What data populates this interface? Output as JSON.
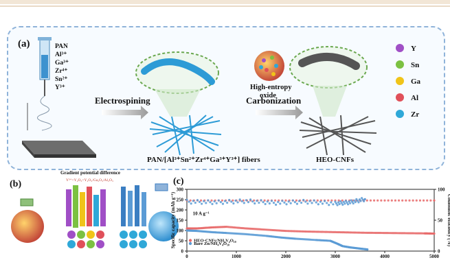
{
  "colors": {
    "frame": "#8fb3d9",
    "fiber_blue": "#2d9bd6",
    "fiber_gray": "#555555",
    "bar_top": "#f2e6d6",
    "red": "#e86a6a",
    "blue": "#5b9bd5"
  },
  "panel_a": {
    "label": "(a)",
    "reagents": [
      "PAN",
      "Al³⁺",
      "Ga³⁺",
      "Zr⁴⁺",
      "Sn²⁺",
      "Y³⁺"
    ],
    "step1": "Electrospining",
    "step2": "Carbonization",
    "fiber_caption": "PAN/[Al³⁺Sn²⁺Zr⁴⁺Ga³⁺Y³⁺] fibers",
    "oxide_label_1": "High-entropy",
    "oxide_label_2": "oxide",
    "product": "HEO-CNFs",
    "legend": [
      {
        "name": "Y",
        "color": "#a04fc6"
      },
      {
        "name": "Sn",
        "color": "#7cc142"
      },
      {
        "name": "Ga",
        "color": "#f0c419"
      },
      {
        "name": "Al",
        "color": "#e0505a"
      },
      {
        "name": "Zr",
        "color": "#2fa8d8"
      }
    ]
  },
  "panel_b": {
    "label": "(b)",
    "title": "Gradient potential difference",
    "subtitle": "Y³⁺<Y₂O₃<Y₂O₃/Ga₂O₃/Al₂O₃"
  },
  "panel_c": {
    "label": "(c)"
  },
  "chart_data": {
    "type": "scatter",
    "xlabel": "",
    "ylabel": "Specific capacity (mAh g⁻¹)",
    "y2label": "Coulombic efficiency (%)",
    "xlim": [
      0,
      5000
    ],
    "ylim": [
      0,
      300
    ],
    "y2lim": [
      0,
      100
    ],
    "xticks": [
      0,
      1000,
      2000,
      3000,
      4000,
      5000
    ],
    "yticks": [
      0,
      50,
      100,
      150,
      200,
      250,
      300
    ],
    "y2ticks": [
      0,
      50,
      100
    ],
    "annotation": "10 A g⁻¹",
    "series": [
      {
        "name": "HEO-CNFs/NH₄V₄O₁₀",
        "kind": "capacity",
        "color": "#e86a6a",
        "x": [
          0,
          200,
          500,
          800,
          1200,
          1600,
          2000,
          2400,
          2800,
          3200,
          3600,
          4000,
          4400,
          4800,
          5000
        ],
        "y": [
          110,
          110,
          115,
          118,
          110,
          104,
          98,
          95,
          93,
          91,
          89,
          88,
          87,
          86,
          85
        ]
      },
      {
        "name": "Bare Zn/NH₄V₄O₁₀",
        "kind": "capacity",
        "color": "#5b9bd5",
        "x": [
          0,
          200,
          500,
          800,
          1200,
          1600,
          1900,
          2200,
          2600,
          2900,
          3050,
          3150,
          3300,
          3500,
          3650
        ],
        "y": [
          100,
          98,
          92,
          88,
          82,
          74,
          66,
          60,
          54,
          50,
          35,
          24,
          18,
          12,
          8
        ]
      },
      {
        "name": "",
        "kind": "efficiency",
        "color": "#e86a6a",
        "x": [
          0,
          1000,
          2000,
          3000,
          4000,
          5000
        ],
        "y": [
          82,
          82,
          82,
          82,
          82,
          82
        ]
      },
      {
        "name": "",
        "kind": "efficiency",
        "color": "#5b9bd5",
        "x": [
          0,
          600,
          1200,
          1800,
          2400,
          3000,
          3300,
          3600
        ],
        "y": [
          80,
          79,
          81,
          78,
          80,
          77,
          79,
          84
        ]
      }
    ],
    "legend_names": [
      "HEO-CNFs/NH₄V₄O₁₀",
      "Bare Zn/NH₄V₄O₁₀"
    ]
  }
}
